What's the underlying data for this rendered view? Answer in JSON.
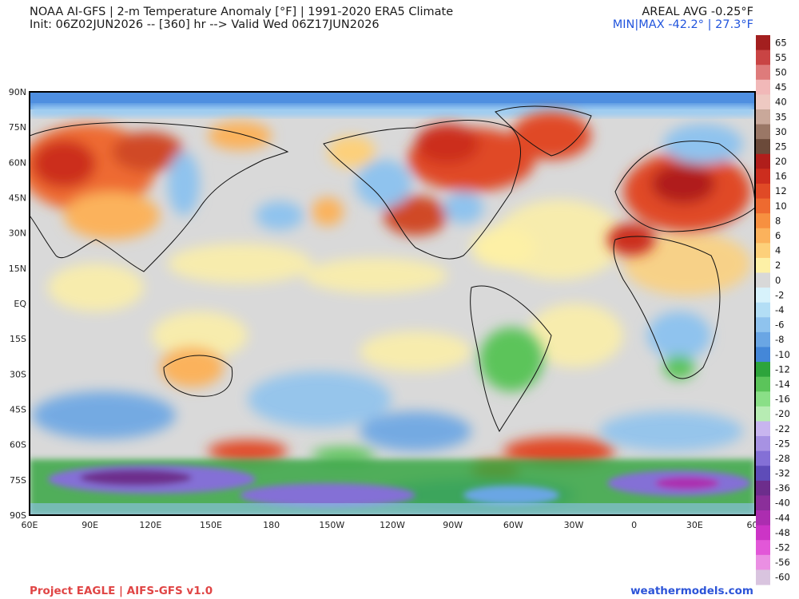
{
  "header": {
    "line1": "NOAA AI-GFS | 2-m Temperature Anomaly [°F] | 1991-2020 ERA5 Climate",
    "line2": "Init: 06Z02JUN2026 -- [360] hr --> Valid Wed 06Z17JUN2026",
    "areal_avg": "AREAL AVG -0.25°F",
    "minmax": "MIN|MAX -42.2° | 27.3°F"
  },
  "footer": {
    "left": "Project EAGLE | AIFS-GFS v1.0",
    "right": "weathermodels.com"
  },
  "map": {
    "lat_labels": [
      "90N",
      "75N",
      "60N",
      "45N",
      "30N",
      "15N",
      "EQ",
      "15S",
      "30S",
      "45S",
      "60S",
      "75S",
      "90S"
    ],
    "lon_labels": [
      "60E",
      "90E",
      "120E",
      "150E",
      "180",
      "150W",
      "120W",
      "90W",
      "60W",
      "30W",
      "0",
      "30E",
      "60E"
    ],
    "regions": [
      {
        "name": "siberia-warm",
        "color": "#d85a2c"
      },
      {
        "name": "europe-warm",
        "color": "#c43a1e"
      },
      {
        "name": "north-america-warm",
        "color": "#d04a26"
      },
      {
        "name": "west-us-cool",
        "color": "#6f9fe0"
      },
      {
        "name": "antarctica-cold",
        "color": "#7d3bb0"
      },
      {
        "name": "southern-ocean-cool",
        "color": "#5b95d8"
      }
    ]
  },
  "colorbar": {
    "labels": [
      "65",
      "55",
      "50",
      "45",
      "40",
      "35",
      "30",
      "25",
      "20",
      "16",
      "12",
      "10",
      "8",
      "6",
      "4",
      "2",
      "0",
      "-2",
      "-4",
      "-6",
      "-8",
      "-10",
      "-12",
      "-14",
      "-16",
      "-20",
      "-22",
      "-25",
      "-28",
      "-32",
      "-36",
      "-40",
      "-44",
      "-48",
      "-52",
      "-56",
      "-60"
    ],
    "colors": [
      "#a31f1f",
      "#c94444",
      "#de7b7b",
      "#f1b8b8",
      "#eec9c2",
      "#c9a89a",
      "#9a7766",
      "#6b4a3a",
      "#b01e1b",
      "#cc2d1e",
      "#e04a26",
      "#ee6a30",
      "#f79040",
      "#fbb25c",
      "#fdd07a",
      "#fdf0a6",
      "#d8d8d8",
      "#d7f2fb",
      "#b3def5",
      "#8fc3ee",
      "#6aa6e4",
      "#4487d8",
      "#2da43b",
      "#5bc45a",
      "#8adf87",
      "#b7ecb3",
      "#c8b5ef",
      "#a792e3",
      "#8470d6",
      "#5e4cb8",
      "#6d2d8c",
      "#8b2f9a",
      "#ac2db0",
      "#cc34c6",
      "#e257d8",
      "#ea8fe3",
      "#d9c4df"
    ]
  }
}
